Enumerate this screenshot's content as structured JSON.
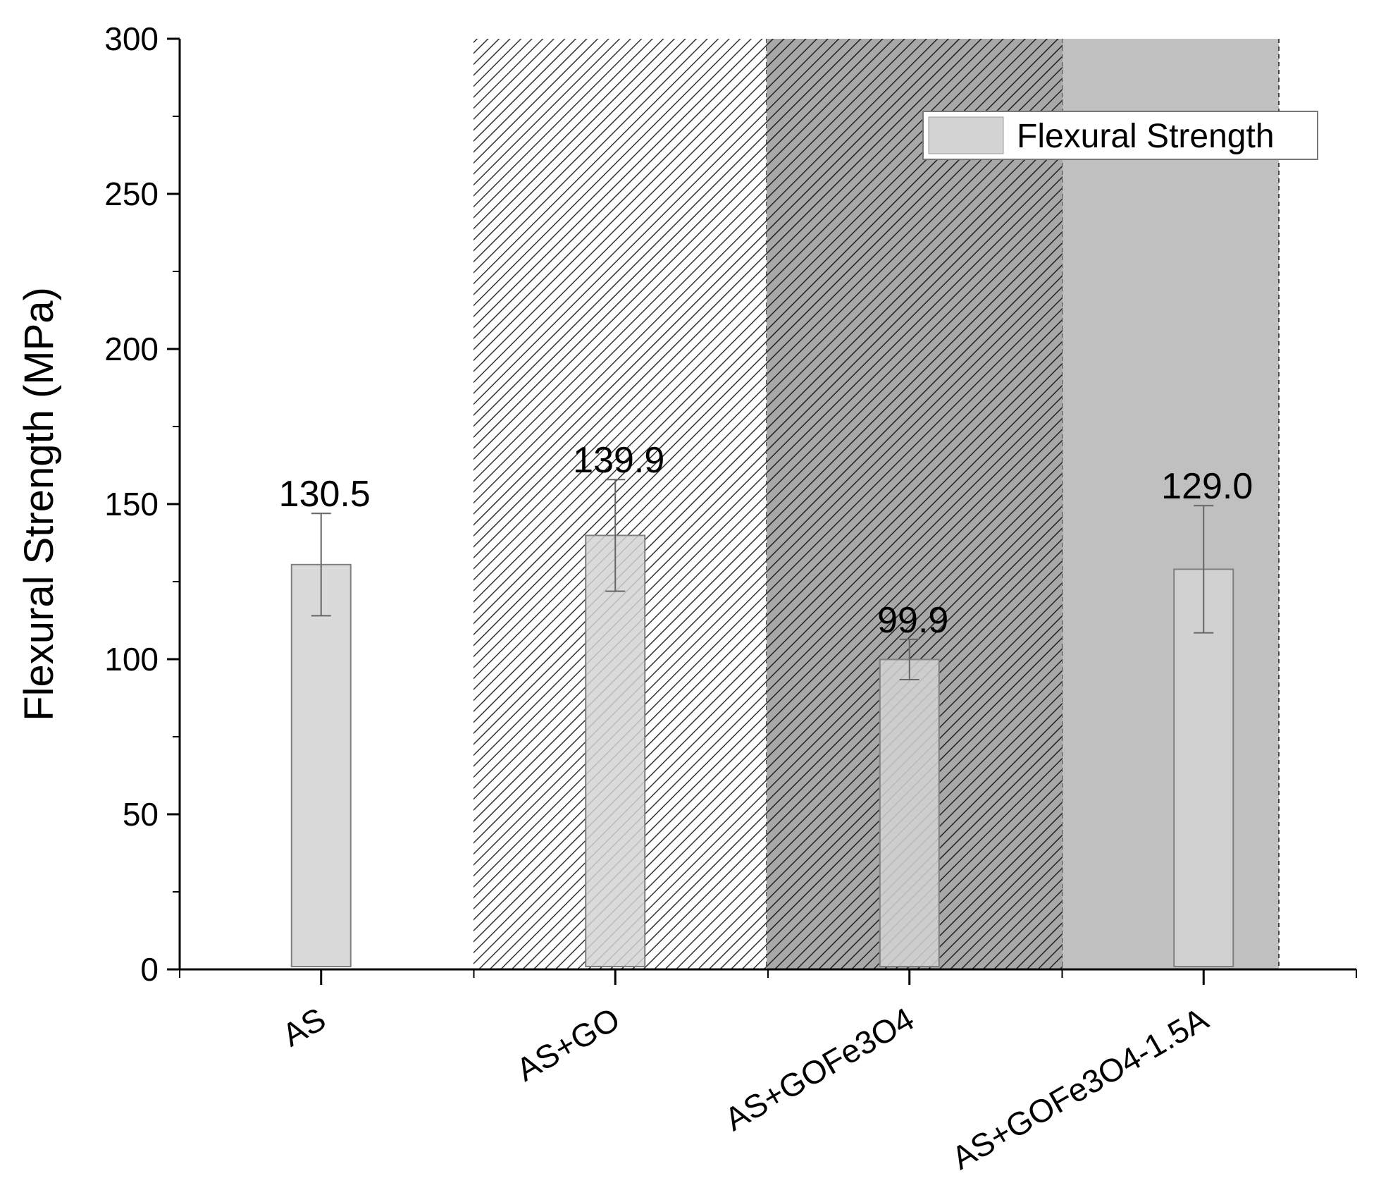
{
  "chart_data": {
    "type": "bar",
    "title": "",
    "xlabel": "",
    "ylabel": "Flexural Strength (MPa)",
    "ylim": [
      0,
      300
    ],
    "yticks": [
      0,
      50,
      100,
      150,
      200,
      250,
      300
    ],
    "categories": [
      "AS",
      "AS+GO",
      "AS+GOFe3O4",
      "AS+GOFe3O4-1.5A"
    ],
    "series": [
      {
        "name": "Flexural Strength",
        "values": [
          130.5,
          139.9,
          99.9,
          129.0
        ],
        "errors": [
          16.5,
          18.0,
          6.5,
          20.5
        ],
        "data_labels": [
          "130.5",
          "139.9",
          "99.9",
          "129.0"
        ],
        "color": "#d3d3d3"
      }
    ],
    "background_bands": [
      {
        "category": "AS",
        "fill": "none"
      },
      {
        "category": "AS+GO",
        "fill": "hatch-light"
      },
      {
        "category": "AS+GOFe3O4",
        "fill": "hatch-dark"
      },
      {
        "category": "AS+GOFe3O4-1.5A",
        "fill": "solid-gray"
      }
    ],
    "colors": {
      "bar": "#d3d3d3",
      "bar_edge": "#808080",
      "band_solid": "#c0c0c0",
      "band_hatch_dark_bg": "#a8a8a8"
    },
    "legend": {
      "position": "top-right",
      "entries": [
        "Flexural Strength"
      ]
    },
    "grid": false
  }
}
